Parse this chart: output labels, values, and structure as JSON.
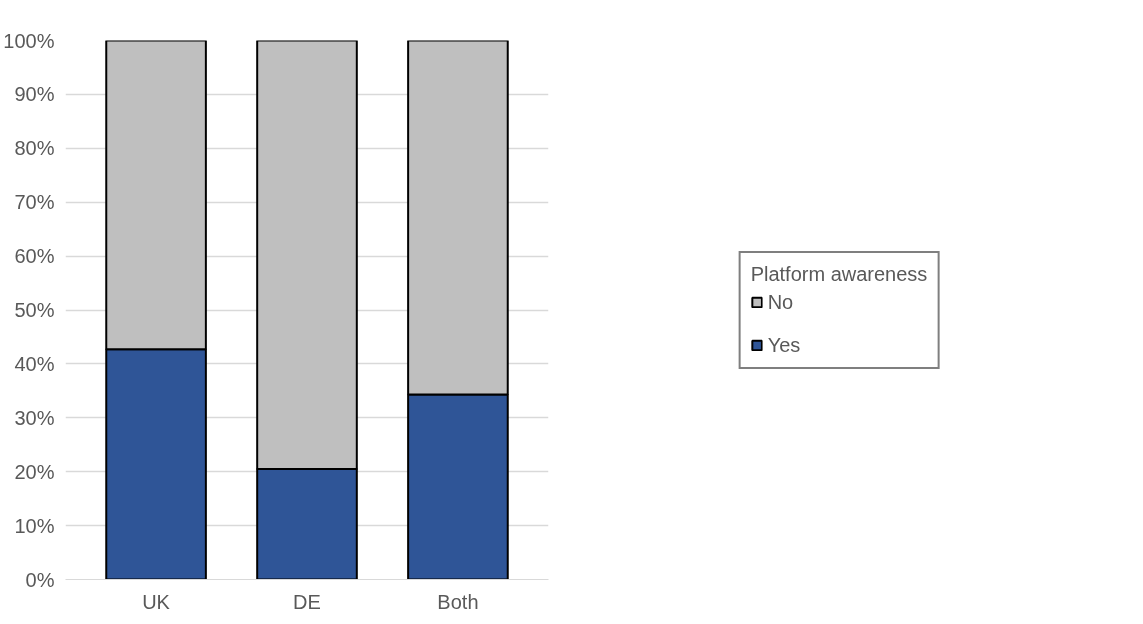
{
  "chart_data": {
    "type": "bar",
    "stacked": true,
    "categories": [
      "UK",
      "DE",
      "Both"
    ],
    "series": [
      {
        "name": "Yes",
        "color": "#2f5597",
        "values": [
          42.7,
          20.5,
          34.3
        ]
      },
      {
        "name": "No",
        "color": "#bfbfbf",
        "values": [
          57.3,
          79.5,
          65.7
        ]
      }
    ],
    "legend_title": "Platform awareness",
    "legend": "right",
    "ylim": [
      0,
      100
    ],
    "yticks": [
      {
        "value": 0,
        "label": "0%"
      },
      {
        "value": 10,
        "label": "10%"
      },
      {
        "value": 20,
        "label": "20%"
      },
      {
        "value": 30,
        "label": "30%"
      },
      {
        "value": 40,
        "label": "40%"
      },
      {
        "value": 50,
        "label": "50%"
      },
      {
        "value": 60,
        "label": "60%"
      },
      {
        "value": 70,
        "label": "70%"
      },
      {
        "value": 80,
        "label": "80%"
      },
      {
        "value": 90,
        "label": "90%"
      },
      {
        "value": 100,
        "label": "100%"
      }
    ],
    "grid": "y"
  }
}
